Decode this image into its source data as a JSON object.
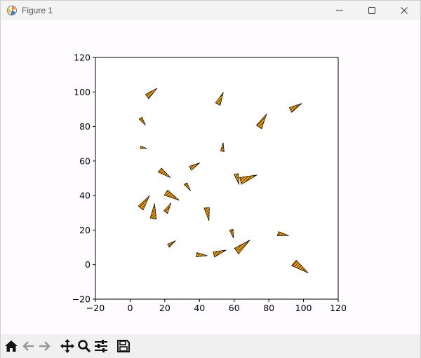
{
  "window": {
    "title": "Figure 1",
    "icons": {
      "app": "matplotlib-icon",
      "minimize": "minimize-icon",
      "maximize": "maximize-icon",
      "close": "close-icon"
    }
  },
  "toolbar": {
    "buttons": [
      {
        "name": "home-button",
        "icon": "home-icon"
      },
      {
        "name": "back-button",
        "icon": "back-arrow-icon"
      },
      {
        "name": "forward-button",
        "icon": "forward-arrow-icon"
      },
      {
        "name": "pan-button",
        "icon": "move-icon"
      },
      {
        "name": "zoom-button",
        "icon": "magnifier-icon"
      },
      {
        "name": "configure-subplots-button",
        "icon": "sliders-icon"
      },
      {
        "name": "save-button",
        "icon": "floppy-disk-icon"
      }
    ]
  },
  "chart_data": {
    "type": "scatter",
    "marker": "hatched triangular wedges",
    "title": "",
    "xlabel": "",
    "ylabel": "",
    "xlim": [
      -20,
      120
    ],
    "ylim": [
      -20,
      120
    ],
    "xticks": [
      "−20",
      "0",
      "20",
      "40",
      "60",
      "80",
      "100",
      "120"
    ],
    "yticks": [
      "−20",
      "0",
      "20",
      "40",
      "60",
      "80",
      "100",
      "120"
    ],
    "grid": false,
    "colors": {
      "fill": "#ffa500",
      "hatch": "#000000",
      "edge": "#000000"
    },
    "points": [
      {
        "x": 11,
        "y": 99,
        "a": 35,
        "s": 6
      },
      {
        "x": 51,
        "y": 95,
        "a": 60,
        "s": 6
      },
      {
        "x": 94,
        "y": 91,
        "a": 25,
        "s": 6
      },
      {
        "x": 7,
        "y": 84,
        "a": -60,
        "s": 4
      },
      {
        "x": 75,
        "y": 82,
        "a": 55,
        "s": 7
      },
      {
        "x": 7,
        "y": 68,
        "a": -15,
        "s": 3
      },
      {
        "x": 53,
        "y": 67,
        "a": 80,
        "s": 4
      },
      {
        "x": 36,
        "y": 57,
        "a": 25,
        "s": 5
      },
      {
        "x": 19,
        "y": 54,
        "a": -40,
        "s": 6
      },
      {
        "x": 62,
        "y": 51,
        "a": -80,
        "s": 5
      },
      {
        "x": 66,
        "y": 50,
        "a": 15,
        "s": 8
      },
      {
        "x": 33,
        "y": 46,
        "a": -60,
        "s": 4
      },
      {
        "x": 23,
        "y": 41,
        "a": -35,
        "s": 7
      },
      {
        "x": 7,
        "y": 35,
        "a": 50,
        "s": 7
      },
      {
        "x": 21,
        "y": 32,
        "a": 55,
        "s": 5
      },
      {
        "x": 45,
        "y": 31,
        "a": -85,
        "s": 6
      },
      {
        "x": 13,
        "y": 29,
        "a": 80,
        "s": 7
      },
      {
        "x": 59,
        "y": 19,
        "a": -80,
        "s": 4
      },
      {
        "x": 87,
        "y": 18,
        "a": -15,
        "s": 5
      },
      {
        "x": 23,
        "y": 12,
        "a": 30,
        "s": 4
      },
      {
        "x": 63,
        "y": 10,
        "a": 35,
        "s": 8
      },
      {
        "x": 40,
        "y": 6,
        "a": -10,
        "s": 5
      },
      {
        "x": 50,
        "y": 7,
        "a": 15,
        "s": 6
      },
      {
        "x": 97,
        "y": 0,
        "a": -40,
        "s": 8
      }
    ]
  }
}
